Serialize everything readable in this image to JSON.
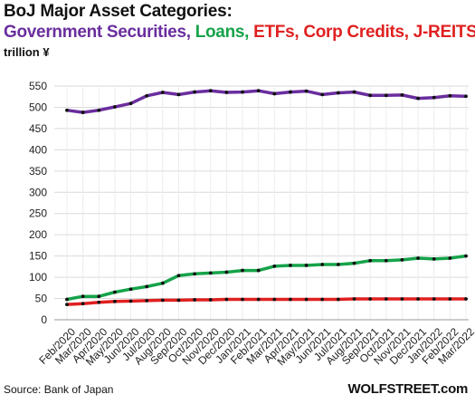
{
  "header": {
    "title": "BoJ Major Asset Categories:",
    "subtitle_parts": [
      {
        "text": "Government Securities,",
        "color": "#6a2e9e"
      },
      {
        "text": "Loans,",
        "color": "#16a34a"
      },
      {
        "text": "ETFs, Corp Credits, J-REITS",
        "color": "#e02020"
      }
    ],
    "unit": "trillion ¥"
  },
  "footer": {
    "source": "Source: Bank of Japan",
    "brand": "WOLFSTREET.com"
  },
  "chart_data": {
    "type": "line",
    "title": "BoJ Major Asset Categories:",
    "ylabel": "trillion ¥",
    "ylim": [
      0,
      550
    ],
    "yticks": [
      0,
      50,
      100,
      150,
      200,
      250,
      300,
      350,
      400,
      450,
      500,
      550
    ],
    "grid": true,
    "categories": [
      "Feb/2020",
      "Mar/2020",
      "Apr/2020",
      "May/2020",
      "Jun/2020",
      "Jul/2020",
      "Aug/2020",
      "Sep/2020",
      "Oct/2020",
      "Nov/2020",
      "Dec/2020",
      "Jan/2021",
      "Feb/2021",
      "Mar/2021",
      "Apr/2021",
      "May/2021",
      "Jun/2021",
      "Jul/2021",
      "Aug/2021",
      "Sep/2021",
      "Oct/2021",
      "Nov/2021",
      "Dec/2021",
      "Jan/2022",
      "Feb/2022",
      "Mar/2022"
    ],
    "series": [
      {
        "name": "Government Securities",
        "color": "#6a2e9e",
        "values": [
          493,
          488,
          493,
          501,
          509,
          527,
          535,
          530,
          536,
          539,
          535,
          536,
          539,
          532,
          536,
          538,
          530,
          534,
          536,
          528,
          528,
          529,
          521,
          523,
          527,
          526
        ]
      },
      {
        "name": "Loans",
        "color": "#16a34a",
        "values": [
          48,
          55,
          55,
          65,
          72,
          78,
          86,
          104,
          108,
          110,
          112,
          116,
          116,
          126,
          128,
          128,
          130,
          130,
          133,
          139,
          139,
          141,
          145,
          143,
          145,
          150
        ]
      },
      {
        "name": "ETFs, Corp Credits, J-REITS",
        "color": "#e02020",
        "values": [
          36,
          38,
          41,
          43,
          44,
          45,
          46,
          46,
          47,
          47,
          48,
          48,
          48,
          48,
          48,
          48,
          48,
          48,
          49,
          49,
          49,
          49,
          49,
          49,
          49,
          49
        ]
      }
    ]
  }
}
